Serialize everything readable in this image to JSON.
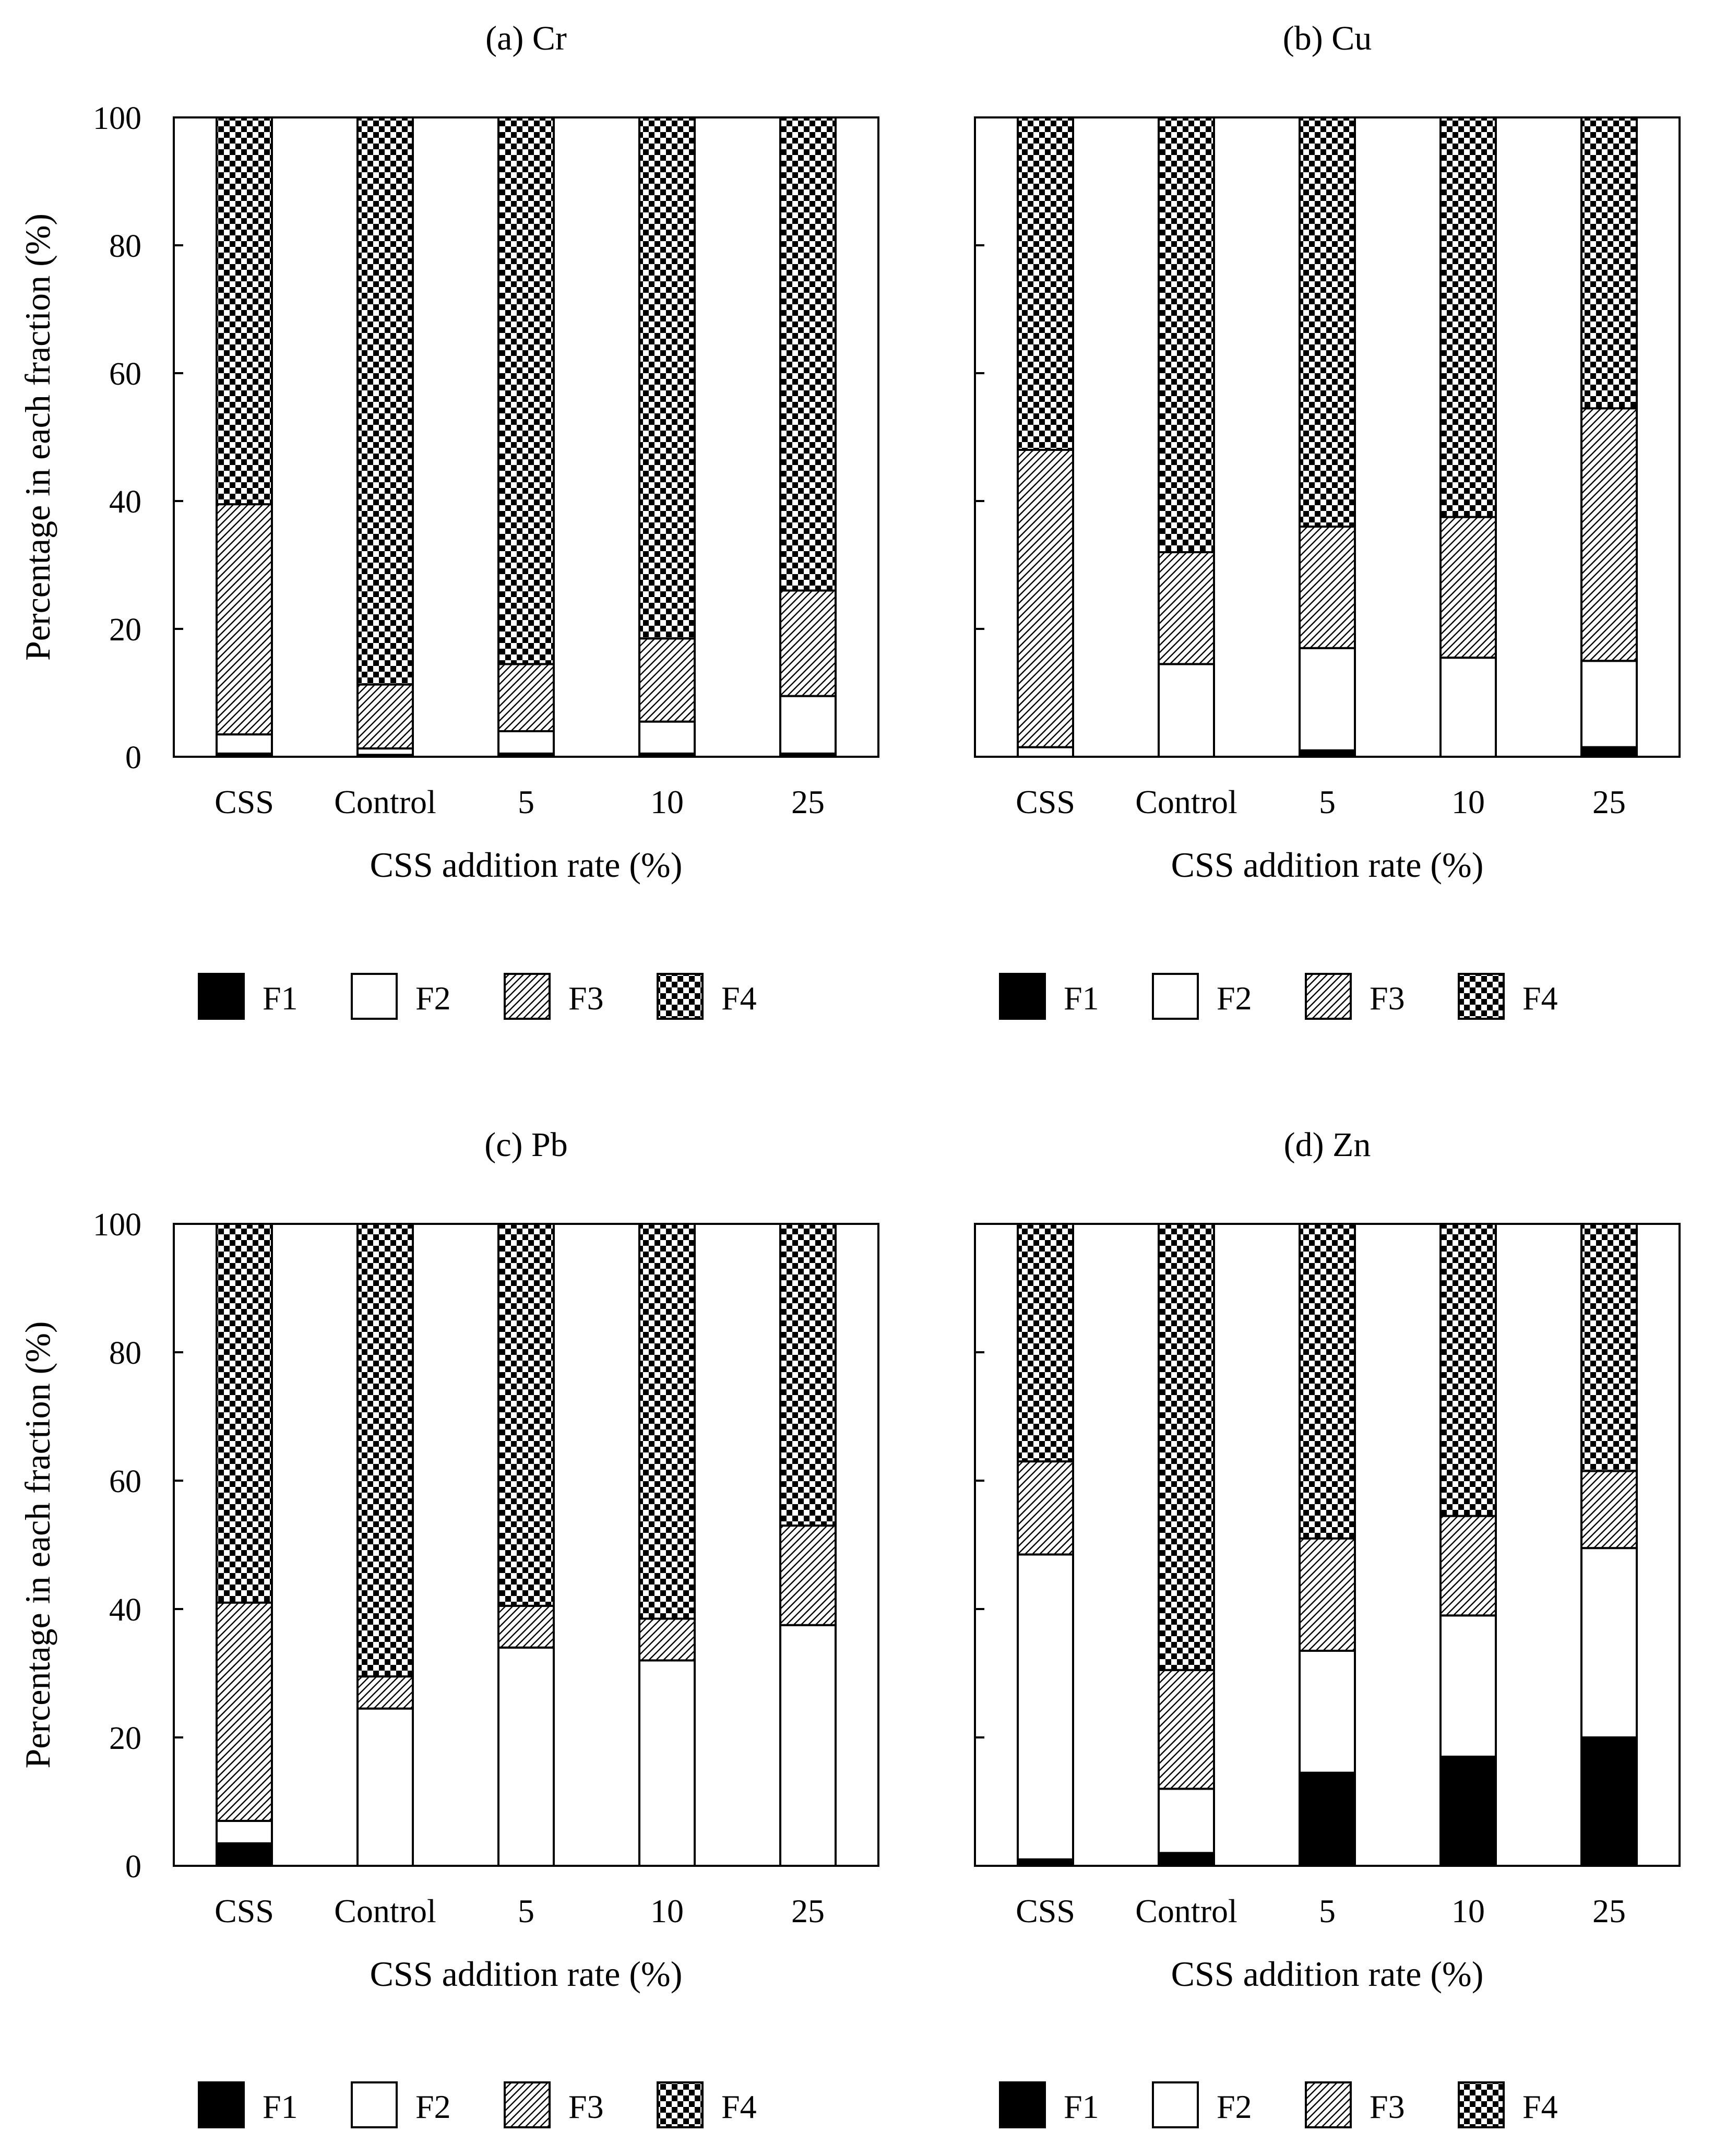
{
  "legend": [
    {
      "key": "F1",
      "label": "F1",
      "fill": "black"
    },
    {
      "key": "F2",
      "label": "F2",
      "fill": "white"
    },
    {
      "key": "F3",
      "label": "F3",
      "fill": "hatch"
    },
    {
      "key": "F4",
      "label": "F4",
      "fill": "checker"
    }
  ],
  "colors": {
    "ink": "#000000",
    "background": "#ffffff"
  },
  "chart_data": [
    {
      "type": "bar",
      "stacked": true,
      "title": "(a) Cr",
      "xlabel": "CSS addition rate (%)",
      "ylabel": "Percentage in each fraction (%)",
      "ylim": [
        0,
        100
      ],
      "yticks": [
        "0",
        "20",
        "40",
        "60",
        "80",
        "100"
      ],
      "categories": [
        "CSS",
        "Control",
        "5",
        "10",
        "25"
      ],
      "series": [
        {
          "name": "F1",
          "values": [
            0.5,
            0.3,
            0.5,
            0.5,
            0.5
          ]
        },
        {
          "name": "F2",
          "values": [
            3.0,
            1.0,
            3.5,
            5.0,
            9.0
          ]
        },
        {
          "name": "F3",
          "values": [
            36.0,
            10.0,
            10.5,
            13.0,
            16.5
          ]
        },
        {
          "name": "F4",
          "values": [
            60.5,
            88.7,
            85.5,
            81.5,
            74.0
          ]
        }
      ]
    },
    {
      "type": "bar",
      "stacked": true,
      "title": "(b) Cu",
      "xlabel": "CSS addition rate (%)",
      "ylabel": "Percentage in each fraction (%)",
      "ylim": [
        0,
        100
      ],
      "yticks": [
        "0",
        "20",
        "40",
        "60",
        "80",
        "100"
      ],
      "categories": [
        "CSS",
        "Control",
        "5",
        "10",
        "25"
      ],
      "series": [
        {
          "name": "F1",
          "values": [
            0.0,
            0.0,
            1.0,
            0.0,
            1.5
          ]
        },
        {
          "name": "F2",
          "values": [
            1.5,
            14.5,
            16.0,
            15.5,
            13.5
          ]
        },
        {
          "name": "F3",
          "values": [
            46.5,
            17.5,
            19.0,
            22.0,
            39.5
          ]
        },
        {
          "name": "F4",
          "values": [
            52.0,
            68.0,
            64.0,
            62.5,
            45.5
          ]
        }
      ]
    },
    {
      "type": "bar",
      "stacked": true,
      "title": "(c) Pb",
      "xlabel": "CSS addition rate (%)",
      "ylabel": "Percentage in each fraction (%)",
      "ylim": [
        0,
        100
      ],
      "yticks": [
        "0",
        "20",
        "40",
        "60",
        "80",
        "100"
      ],
      "categories": [
        "CSS",
        "Control",
        "5",
        "10",
        "25"
      ],
      "series": [
        {
          "name": "F1",
          "values": [
            3.5,
            0.0,
            0.0,
            0.0,
            0.0
          ]
        },
        {
          "name": "F2",
          "values": [
            3.5,
            24.5,
            34.0,
            32.0,
            37.5
          ]
        },
        {
          "name": "F3",
          "values": [
            34.0,
            5.0,
            6.5,
            6.5,
            15.5
          ]
        },
        {
          "name": "F4",
          "values": [
            59.0,
            70.5,
            59.5,
            61.5,
            47.0
          ]
        }
      ]
    },
    {
      "type": "bar",
      "stacked": true,
      "title": "(d) Zn",
      "xlabel": "CSS addition rate (%)",
      "ylabel": "Percentage in each fraction (%)",
      "ylim": [
        0,
        100
      ],
      "yticks": [
        "0",
        "20",
        "40",
        "60",
        "80",
        "100"
      ],
      "categories": [
        "CSS",
        "Control",
        "5",
        "10",
        "25"
      ],
      "series": [
        {
          "name": "F1",
          "values": [
            1.0,
            2.0,
            14.5,
            17.0,
            20.0
          ]
        },
        {
          "name": "F2",
          "values": [
            47.5,
            10.0,
            19.0,
            22.0,
            29.5
          ]
        },
        {
          "name": "F3",
          "values": [
            14.5,
            18.5,
            17.5,
            15.5,
            12.0
          ]
        },
        {
          "name": "F4",
          "values": [
            37.0,
            69.5,
            49.0,
            45.5,
            38.5
          ]
        }
      ]
    }
  ]
}
